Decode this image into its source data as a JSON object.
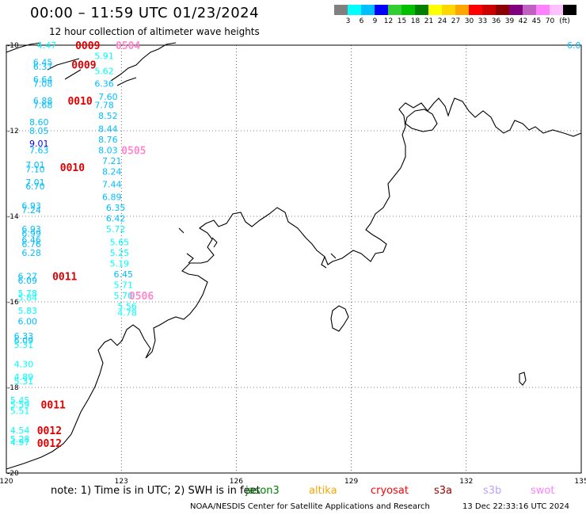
{
  "header": {
    "title": "00:00 – 11:59 UTC 01/23/2024",
    "subtitle": "12 hour collection of altimeter wave heights"
  },
  "legend": {
    "colors": [
      "#808080",
      "#00ffff",
      "#00bfff",
      "#0000ff",
      "#32cd32",
      "#00c000",
      "#008000",
      "#ffff00",
      "#ffd700",
      "#ffa500",
      "#ff0000",
      "#cc0000",
      "#8b0000",
      "#800080",
      "#c060c0",
      "#ff80ff",
      "#ffc0ff",
      "#000000"
    ],
    "levels": [
      "3",
      "6",
      "9",
      "12",
      "15",
      "18",
      "21",
      "24",
      "27",
      "30",
      "33",
      "36",
      "39",
      "42",
      "45",
      "70"
    ],
    "unit": "(ft)"
  },
  "map": {
    "lon_ticks": [
      "120",
      "123",
      "126",
      "129",
      "132",
      "135"
    ],
    "lat_ticks": [
      "-10",
      "-12",
      "-14",
      "-16",
      "-18",
      "-20"
    ],
    "readings": [
      {
        "value": "4.47",
        "lon": 120.8,
        "lat": -10.0
      },
      {
        "value": "5.91",
        "lon": 122.3,
        "lat": -10.25
      },
      {
        "value": "6.45",
        "lon": 120.7,
        "lat": -10.4
      },
      {
        "value": "6.37",
        "lon": 120.7,
        "lat": -10.5
      },
      {
        "value": "5.62",
        "lon": 122.3,
        "lat": -10.6
      },
      {
        "value": "6.64",
        "lon": 120.7,
        "lat": -10.8
      },
      {
        "value": "7.08",
        "lon": 120.7,
        "lat": -10.9
      },
      {
        "value": "6.36",
        "lon": 122.3,
        "lat": -10.9
      },
      {
        "value": "7.60",
        "lon": 122.4,
        "lat": -11.2
      },
      {
        "value": "6.88",
        "lon": 120.7,
        "lat": -11.3
      },
      {
        "value": "7.68",
        "lon": 120.7,
        "lat": -11.4
      },
      {
        "value": "7.78",
        "lon": 122.3,
        "lat": -11.4
      },
      {
        "value": "8.52",
        "lon": 122.4,
        "lat": -11.65
      },
      {
        "value": "8.60",
        "lon": 120.6,
        "lat": -11.8
      },
      {
        "value": "8.05",
        "lon": 120.6,
        "lat": -12.0
      },
      {
        "value": "8.44",
        "lon": 122.4,
        "lat": -11.95
      },
      {
        "value": "8.76",
        "lon": 122.4,
        "lat": -12.2
      },
      {
        "value": "9.01",
        "lon": 120.6,
        "lat": -12.3
      },
      {
        "value": "7.63",
        "lon": 120.6,
        "lat": -12.45
      },
      {
        "value": "8.03",
        "lon": 122.4,
        "lat": -12.45
      },
      {
        "value": "7.21",
        "lon": 122.5,
        "lat": -12.7
      },
      {
        "value": "7.01",
        "lon": 120.5,
        "lat": -12.8
      },
      {
        "value": "7.10",
        "lon": 120.5,
        "lat": -12.9
      },
      {
        "value": "8.24",
        "lon": 122.5,
        "lat": -12.95
      },
      {
        "value": "7.01",
        "lon": 120.5,
        "lat": -13.2
      },
      {
        "value": "7.44",
        "lon": 122.5,
        "lat": -13.25
      },
      {
        "value": "6.70",
        "lon": 120.5,
        "lat": -13.3
      },
      {
        "value": "6.89",
        "lon": 122.5,
        "lat": -13.55
      },
      {
        "value": "6.93",
        "lon": 120.4,
        "lat": -13.75
      },
      {
        "value": "7.24",
        "lon": 120.4,
        "lat": -13.85
      },
      {
        "value": "6.35",
        "lon": 122.6,
        "lat": -13.8
      },
      {
        "value": "6.42",
        "lon": 122.6,
        "lat": -14.05
      },
      {
        "value": "5.72",
        "lon": 122.6,
        "lat": -14.3
      },
      {
        "value": "6.93",
        "lon": 120.4,
        "lat": -14.3
      },
      {
        "value": "6.99",
        "lon": 120.4,
        "lat": -14.4
      },
      {
        "value": "5.65",
        "lon": 122.7,
        "lat": -14.6
      },
      {
        "value": "6.46",
        "lon": 120.4,
        "lat": -14.55
      },
      {
        "value": "6.76",
        "lon": 120.4,
        "lat": -14.65
      },
      {
        "value": "5.25",
        "lon": 122.7,
        "lat": -14.85
      },
      {
        "value": "6.28",
        "lon": 120.4,
        "lat": -14.85
      },
      {
        "value": "5.19",
        "lon": 122.7,
        "lat": -15.1
      },
      {
        "value": "6.45",
        "lon": 122.8,
        "lat": -15.35
      },
      {
        "value": "6.27",
        "lon": 120.3,
        "lat": -15.4
      },
      {
        "value": "6.09",
        "lon": 120.3,
        "lat": -15.5
      },
      {
        "value": "5.71",
        "lon": 122.8,
        "lat": -15.6
      },
      {
        "value": "5.78",
        "lon": 120.3,
        "lat": -15.8
      },
      {
        "value": "5.84",
        "lon": 120.3,
        "lat": -15.9
      },
      {
        "value": "5.70",
        "lon": 122.8,
        "lat": -15.85
      },
      {
        "value": "5.56",
        "lon": 122.9,
        "lat": -16.1
      },
      {
        "value": "5.83",
        "lon": 120.3,
        "lat": -16.2
      },
      {
        "value": "4.78",
        "lon": 122.9,
        "lat": -16.25
      },
      {
        "value": "6.00",
        "lon": 120.3,
        "lat": -16.45
      },
      {
        "value": "6.33",
        "lon": 120.2,
        "lat": -16.8
      },
      {
        "value": "6.09",
        "lon": 120.2,
        "lat": -16.9
      },
      {
        "value": "5.31",
        "lon": 120.2,
        "lat": -17.0
      },
      {
        "value": "4.30",
        "lon": 120.2,
        "lat": -17.45
      },
      {
        "value": "4.89",
        "lon": 120.2,
        "lat": -17.75
      },
      {
        "value": "5.31",
        "lon": 120.2,
        "lat": -17.85
      },
      {
        "value": "5.45",
        "lon": 120.1,
        "lat": -18.3
      },
      {
        "value": "5.59",
        "lon": 120.1,
        "lat": -18.4
      },
      {
        "value": "5.51",
        "lon": 120.1,
        "lat": -18.55
      },
      {
        "value": "4.54",
        "lon": 120.1,
        "lat": -19.0
      },
      {
        "value": "5.28",
        "lon": 120.1,
        "lat": -19.2
      },
      {
        "value": "4.97",
        "lon": 120.1,
        "lat": -19.28
      },
      {
        "value": "6.0",
        "lon": 134.9,
        "lat": -10.0
      }
    ],
    "passes": [
      {
        "code": "0009",
        "lon": 121.8,
        "lat": -10.0,
        "color": "#dd0000"
      },
      {
        "code": "0504",
        "lon": 122.85,
        "lat": -10.0,
        "color": "#ff88cc"
      },
      {
        "code": "0009",
        "lon": 121.7,
        "lat": -10.45,
        "color": "#dd0000"
      },
      {
        "code": "0010",
        "lon": 121.6,
        "lat": -11.3,
        "color": "#dd0000"
      },
      {
        "code": "0505",
        "lon": 123.0,
        "lat": -12.45,
        "color": "#ff88cc"
      },
      {
        "code": "0010",
        "lon": 121.4,
        "lat": -12.85,
        "color": "#dd0000"
      },
      {
        "code": "0011",
        "lon": 121.2,
        "lat": -15.4,
        "color": "#dd0000"
      },
      {
        "code": "0506",
        "lon": 123.2,
        "lat": -15.85,
        "color": "#ff88cc"
      },
      {
        "code": "0011",
        "lon": 120.9,
        "lat": -18.4,
        "color": "#dd0000"
      },
      {
        "code": "0012",
        "lon": 120.8,
        "lat": -19.0,
        "color": "#dd0000"
      },
      {
        "code": "0012",
        "lon": 120.8,
        "lat": -19.3,
        "color": "#dd0000"
      }
    ]
  },
  "footer": {
    "note": "note:  1) Time is in UTC;  2) SWH is in feet",
    "satellites": [
      {
        "name": "jason3",
        "color": "#008000"
      },
      {
        "name": "altika",
        "color": "#ffa500"
      },
      {
        "name": "cryosat",
        "color": "#ff0000"
      },
      {
        "name": "s3a",
        "color": "#a00000"
      },
      {
        "name": "s3b",
        "color": "#c0a0ff"
      },
      {
        "name": "swot",
        "color": "#ff80ff"
      }
    ],
    "credit": "NOAA/NESDIS Center for Satellite Applications and Research",
    "timestamp": "13 Dec 22:33:16 UTC 2024"
  }
}
